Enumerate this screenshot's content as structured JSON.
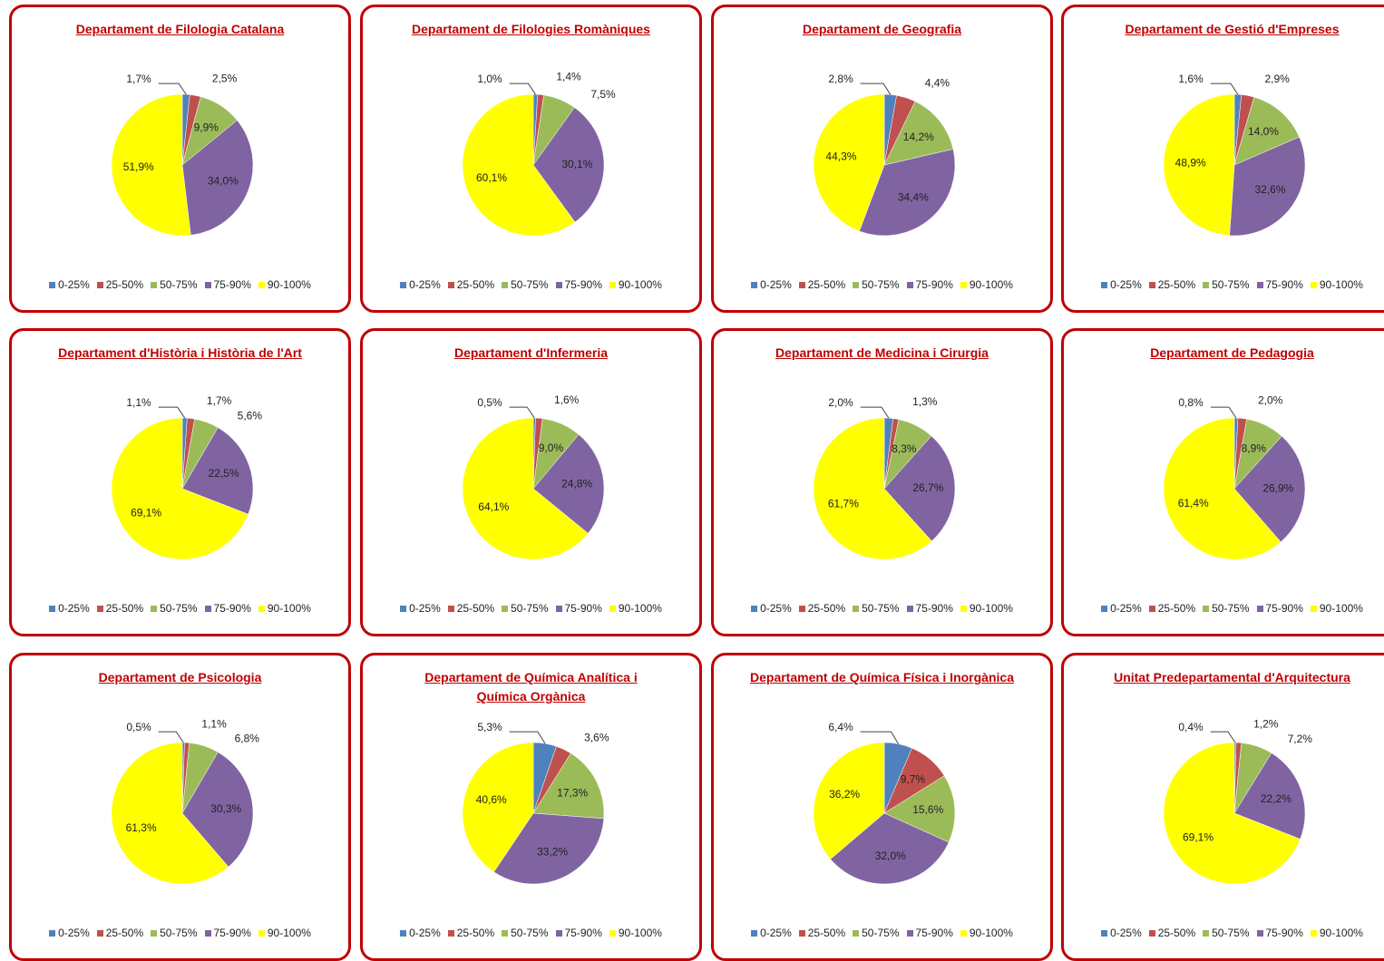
{
  "chart_data": [
    {
      "type": "pie",
      "title": "Departament de Filologia Catalana",
      "categories": [
        "0-25%",
        "25-50%",
        "50-75%",
        "75-90%",
        "90-100%"
      ],
      "values": [
        1.7,
        2.5,
        9.9,
        34.0,
        51.9
      ],
      "value_labels": [
        "1,7%",
        "2,5%",
        "9,9%",
        "34,0%",
        "51,9%"
      ],
      "colors": [
        "#4f81bd",
        "#c0504d",
        "#9bbb59",
        "#8064a2",
        "#ffff00"
      ]
    },
    {
      "type": "pie",
      "title": "Departament de Filologies Romàniques",
      "categories": [
        "0-25%",
        "25-50%",
        "50-75%",
        "75-90%",
        "90-100%"
      ],
      "values": [
        1.0,
        1.4,
        7.5,
        30.1,
        60.1
      ],
      "value_labels": [
        "1,0%",
        "1,4%",
        "7,5%",
        "30,1%",
        "60,1%"
      ],
      "colors": [
        "#4f81bd",
        "#c0504d",
        "#9bbb59",
        "#8064a2",
        "#ffff00"
      ]
    },
    {
      "type": "pie",
      "title": "Departament de Geografia",
      "categories": [
        "0-25%",
        "25-50%",
        "50-75%",
        "75-90%",
        "90-100%"
      ],
      "values": [
        2.8,
        4.4,
        14.2,
        34.4,
        44.3
      ],
      "value_labels": [
        "2,8%",
        "4,4%",
        "14,2%",
        "34,4%",
        "44,3%"
      ],
      "colors": [
        "#4f81bd",
        "#c0504d",
        "#9bbb59",
        "#8064a2",
        "#ffff00"
      ]
    },
    {
      "type": "pie",
      "title": "Departament de Gestió d'Empreses",
      "categories": [
        "0-25%",
        "25-50%",
        "50-75%",
        "75-90%",
        "90-100%"
      ],
      "values": [
        1.6,
        2.9,
        14.0,
        32.6,
        48.9
      ],
      "value_labels": [
        "1,6%",
        "2,9%",
        "14,0%",
        "32,6%",
        "48,9%"
      ],
      "colors": [
        "#4f81bd",
        "#c0504d",
        "#9bbb59",
        "#8064a2",
        "#ffff00"
      ]
    },
    {
      "type": "pie",
      "title": "Departament d'Història i Història de l'Art",
      "categories": [
        "0-25%",
        "25-50%",
        "50-75%",
        "75-90%",
        "90-100%"
      ],
      "values": [
        1.1,
        1.7,
        5.6,
        22.5,
        69.1
      ],
      "value_labels": [
        "1,1%",
        "1,7%",
        "5,6%",
        "22,5%",
        "69,1%"
      ],
      "colors": [
        "#4f81bd",
        "#c0504d",
        "#9bbb59",
        "#8064a2",
        "#ffff00"
      ]
    },
    {
      "type": "pie",
      "title": "Departament d'Infermeria",
      "categories": [
        "0-25%",
        "25-50%",
        "50-75%",
        "75-90%",
        "90-100%"
      ],
      "values": [
        0.5,
        1.6,
        9.0,
        24.8,
        64.1
      ],
      "value_labels": [
        "0,5%",
        "1,6%",
        "9,0%",
        "24,8%",
        "64,1%"
      ],
      "colors": [
        "#4f81bd",
        "#c0504d",
        "#9bbb59",
        "#8064a2",
        "#ffff00"
      ]
    },
    {
      "type": "pie",
      "title": "Departament de Medicina i Cirurgia",
      "categories": [
        "0-25%",
        "25-50%",
        "50-75%",
        "75-90%",
        "90-100%"
      ],
      "values": [
        2.0,
        1.3,
        8.3,
        26.7,
        61.7
      ],
      "value_labels": [
        "2,0%",
        "1,3%",
        "8,3%",
        "26,7%",
        "61,7%"
      ],
      "colors": [
        "#4f81bd",
        "#c0504d",
        "#9bbb59",
        "#8064a2",
        "#ffff00"
      ]
    },
    {
      "type": "pie",
      "title": "Departament de Pedagogia",
      "categories": [
        "0-25%",
        "25-50%",
        "50-75%",
        "75-90%",
        "90-100%"
      ],
      "values": [
        0.8,
        2.0,
        8.9,
        26.9,
        61.4
      ],
      "value_labels": [
        "0,8%",
        "2,0%",
        "8,9%",
        "26,9%",
        "61,4%"
      ],
      "colors": [
        "#4f81bd",
        "#c0504d",
        "#9bbb59",
        "#8064a2",
        "#ffff00"
      ]
    },
    {
      "type": "pie",
      "title": "Departament de Psicologia",
      "categories": [
        "0-25%",
        "25-50%",
        "50-75%",
        "75-90%",
        "90-100%"
      ],
      "values": [
        0.5,
        1.1,
        6.8,
        30.3,
        61.3
      ],
      "value_labels": [
        "0,5%",
        "1,1%",
        "6,8%",
        "30,3%",
        "61,3%"
      ],
      "colors": [
        "#4f81bd",
        "#c0504d",
        "#9bbb59",
        "#8064a2",
        "#ffff00"
      ]
    },
    {
      "type": "pie",
      "title": "Departament de Química Analítica i Química Orgànica",
      "categories": [
        "0-25%",
        "25-50%",
        "50-75%",
        "75-90%",
        "90-100%"
      ],
      "values": [
        5.3,
        3.6,
        17.3,
        33.2,
        40.6
      ],
      "value_labels": [
        "5,3%",
        "3,6%",
        "17,3%",
        "33,2%",
        "40,6%"
      ],
      "colors": [
        "#4f81bd",
        "#c0504d",
        "#9bbb59",
        "#8064a2",
        "#ffff00"
      ]
    },
    {
      "type": "pie",
      "title": "Departament de Química Física i Inorgànica",
      "categories": [
        "0-25%",
        "25-50%",
        "50-75%",
        "75-90%",
        "90-100%"
      ],
      "values": [
        6.4,
        9.7,
        15.6,
        32.0,
        36.2
      ],
      "value_labels": [
        "6,4%",
        "9,7%",
        "15,6%",
        "32,0%",
        "36,2%"
      ],
      "colors": [
        "#4f81bd",
        "#c0504d",
        "#9bbb59",
        "#8064a2",
        "#ffff00"
      ]
    },
    {
      "type": "pie",
      "title": "Unitat Predepartamental d'Arquitectura",
      "categories": [
        "0-25%",
        "25-50%",
        "50-75%",
        "75-90%",
        "90-100%"
      ],
      "values": [
        0.4,
        1.2,
        7.2,
        22.2,
        69.1
      ],
      "value_labels": [
        "0,4%",
        "1,2%",
        "7,2%",
        "22,2%",
        "69,1%"
      ],
      "colors": [
        "#4f81bd",
        "#c0504d",
        "#9bbb59",
        "#8064a2",
        "#ffff00"
      ]
    }
  ]
}
